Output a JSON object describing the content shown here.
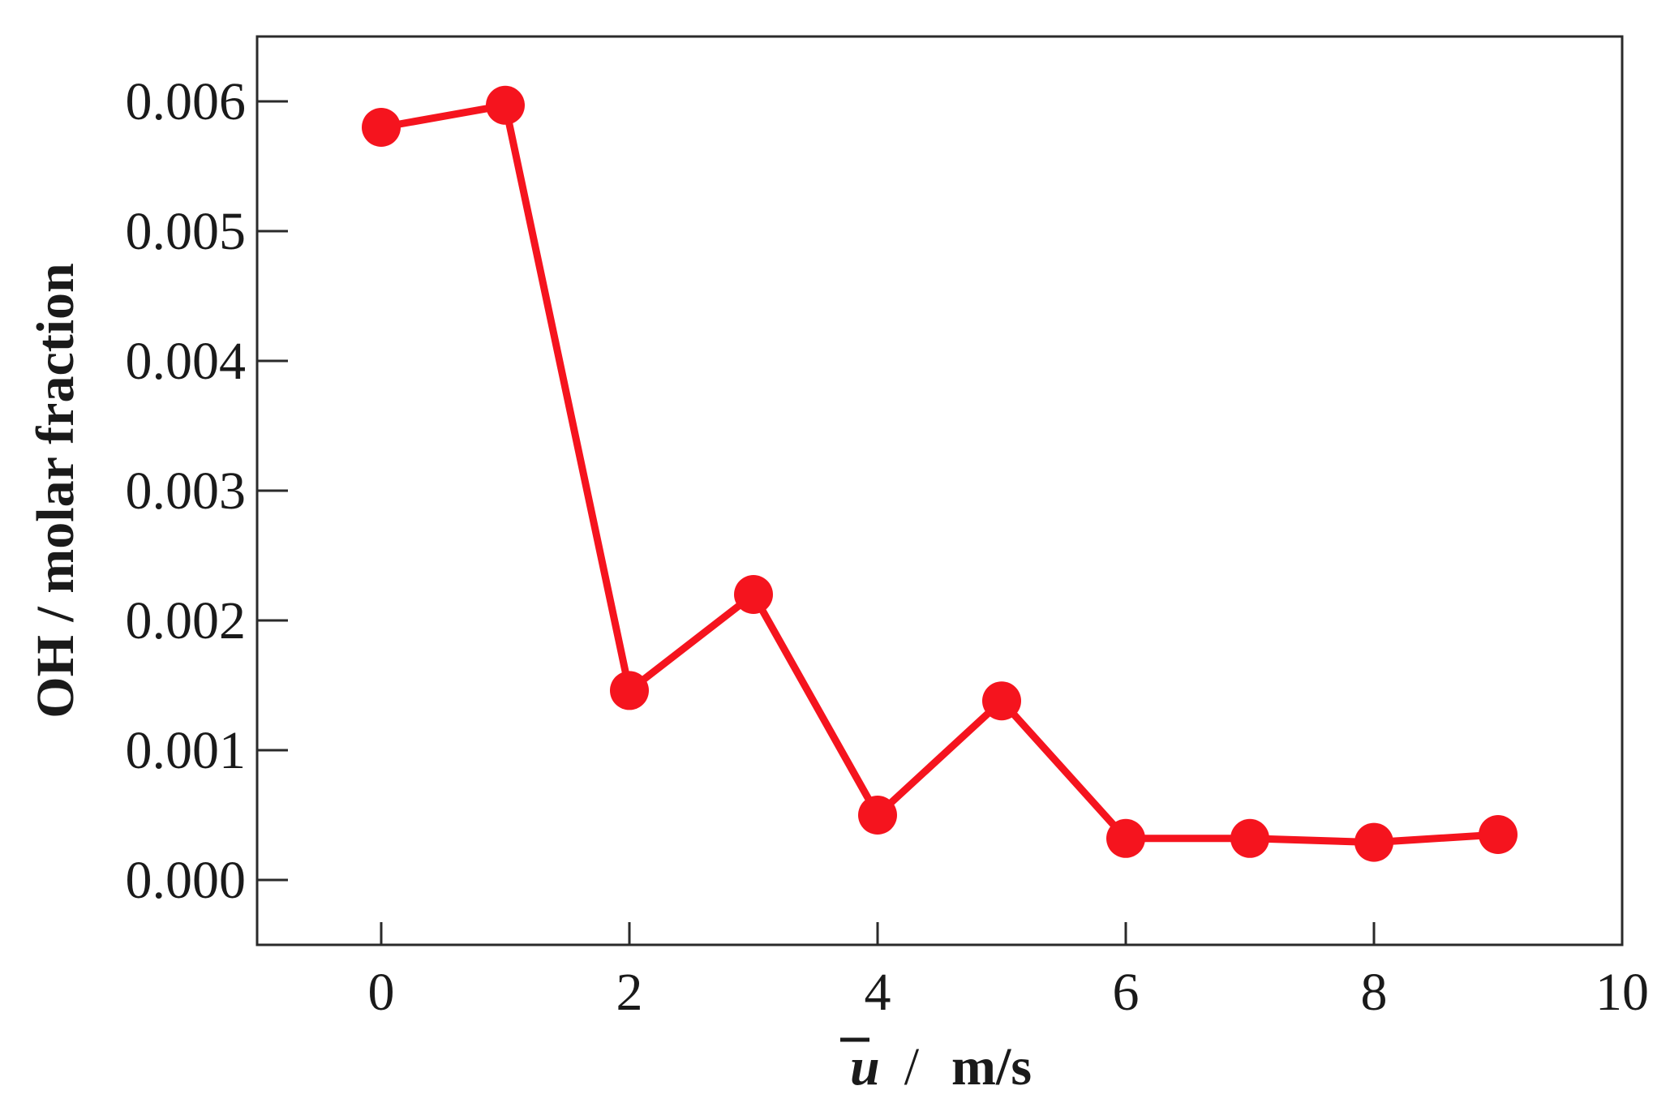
{
  "chart_data": {
    "type": "line",
    "xlabel_symbol": "u",
    "xlabel_sep": "/",
    "xlabel_unit": "m/s",
    "ylabel": "OH / molar fraction",
    "xlim": [
      -1,
      10
    ],
    "ylim": [
      -0.0005,
      0.0065
    ],
    "xticks": [
      0,
      2,
      4,
      6,
      8,
      10
    ],
    "xtick_labels": [
      "0",
      "2",
      "4",
      "6",
      "8",
      "10"
    ],
    "yticks": [
      0,
      0.001,
      0.002,
      0.003,
      0.004,
      0.005,
      0.006
    ],
    "ytick_labels": [
      "0.000",
      "0.001",
      "0.002",
      "0.003",
      "0.004",
      "0.005",
      "0.006"
    ],
    "grid": false,
    "legend": "none",
    "series": [
      {
        "color": "#f5141e",
        "marker": "circle",
        "x": [
          0,
          1,
          2,
          3,
          4,
          5,
          6,
          7,
          8,
          9
        ],
        "y": [
          0.0058,
          0.00597,
          0.00146,
          0.0022,
          0.0005,
          0.00138,
          0.00032,
          0.00032,
          0.00029,
          0.00035
        ]
      }
    ]
  }
}
